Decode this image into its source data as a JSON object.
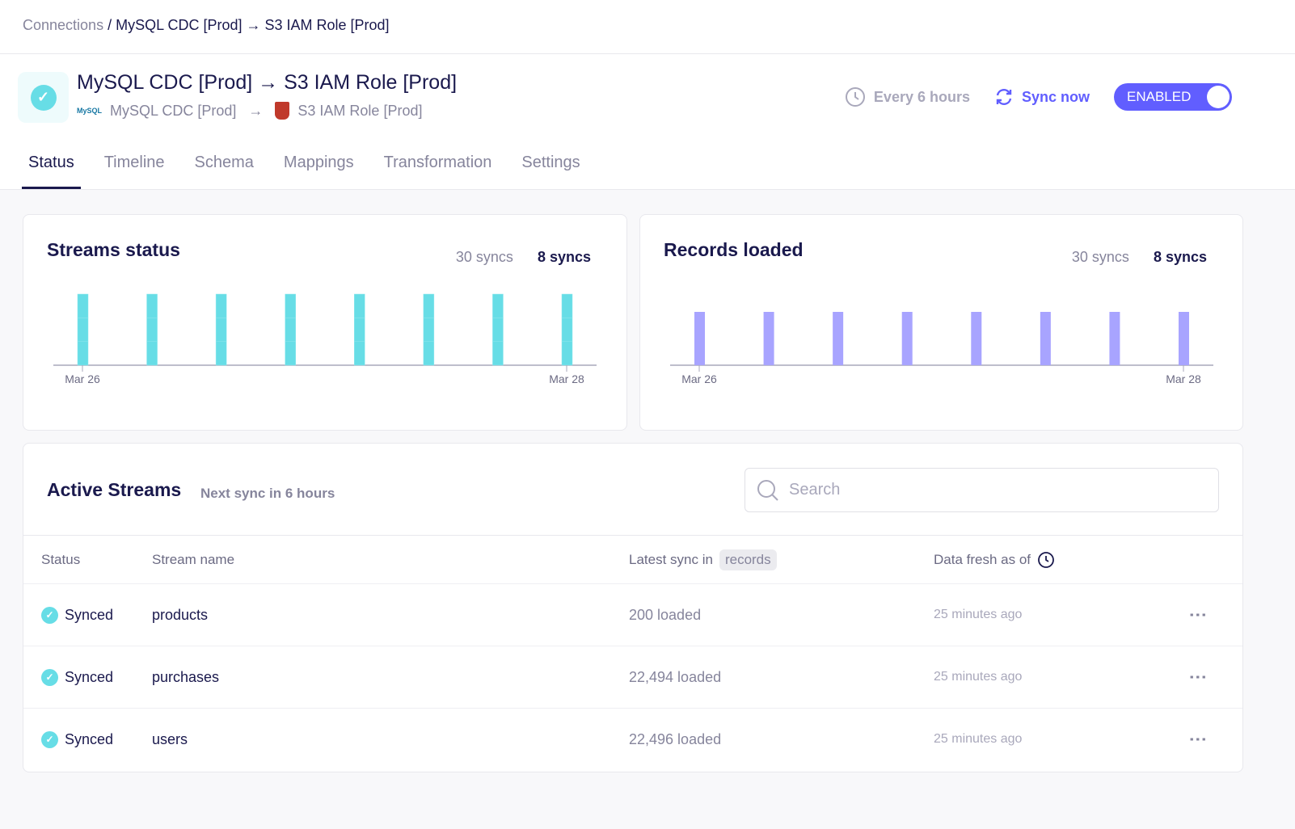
{
  "breadcrumb": {
    "root": "Connections",
    "separator": "/",
    "current": "MySQL CDC [Prod] → S3 IAM Role [Prod]"
  },
  "header": {
    "title": "MySQL CDC [Prod] → S3 IAM Role [Prod]",
    "source": "MySQL CDC [Prod]",
    "destination": "S3 IAM Role [Prod]",
    "source_logo_text": "MySQL",
    "schedule": "Every 6 hours",
    "sync_now": "Sync now",
    "toggle_label": "ENABLED",
    "toggle_on": true
  },
  "tabs": [
    {
      "label": "Status",
      "active": true
    },
    {
      "label": "Timeline"
    },
    {
      "label": "Schema"
    },
    {
      "label": "Mappings"
    },
    {
      "label": "Transformation"
    },
    {
      "label": "Settings"
    }
  ],
  "colors": {
    "accent": "#615eff",
    "synced": "#67dde6",
    "records": "#a8a4ff",
    "text": "#1a194d"
  },
  "chart_data": [
    {
      "type": "bar",
      "title": "Streams status",
      "range_options": [
        "30 syncs",
        "8 syncs"
      ],
      "selected_range": "8 syncs",
      "stacked": true,
      "x_tick_labels": [
        "Mar 26",
        "Mar 28"
      ],
      "categories": [
        "1",
        "2",
        "3",
        "4",
        "5",
        "6",
        "7",
        "8"
      ],
      "series": [
        {
          "values": [
            1,
            1,
            1,
            1,
            1,
            1,
            1,
            1
          ]
        },
        {
          "values": [
            1,
            1,
            1,
            1,
            1,
            1,
            1,
            1
          ]
        },
        {
          "values": [
            1,
            1,
            1,
            1,
            1,
            1,
            1,
            1
          ]
        }
      ],
      "ylim": [
        0,
        3
      ]
    },
    {
      "type": "bar",
      "title": "Records loaded",
      "range_options": [
        "30 syncs",
        "8 syncs"
      ],
      "selected_range": "8 syncs",
      "x_tick_labels": [
        "Mar 26",
        "Mar 28"
      ],
      "categories": [
        "1",
        "2",
        "3",
        "4",
        "5",
        "6",
        "7",
        "8"
      ],
      "values": [
        45190,
        45190,
        45190,
        45190,
        45190,
        45190,
        45190,
        45190
      ]
    }
  ],
  "streams": {
    "title": "Active Streams",
    "next_sync": "Next sync in 6 hours",
    "search_placeholder": "Search",
    "columns": {
      "status": "Status",
      "name": "Stream name",
      "latest": "Latest sync in",
      "latest_unit": "records",
      "fresh": "Data fresh as of"
    },
    "rows": [
      {
        "status": "Synced",
        "name": "products",
        "loaded": "200 loaded",
        "fresh": "25 minutes ago"
      },
      {
        "status": "Synced",
        "name": "purchases",
        "loaded": "22,494 loaded",
        "fresh": "25 minutes ago"
      },
      {
        "status": "Synced",
        "name": "users",
        "loaded": "22,496 loaded",
        "fresh": "25 minutes ago"
      }
    ]
  }
}
